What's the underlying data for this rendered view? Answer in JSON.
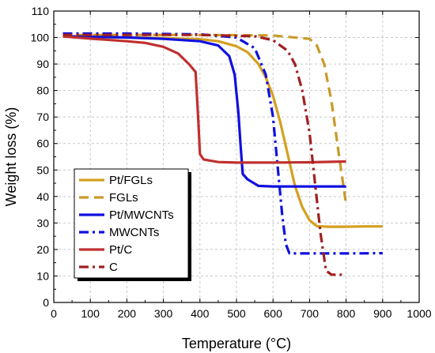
{
  "chart_data": {
    "type": "line",
    "title": "",
    "xlabel": "Temperature (°C)",
    "ylabel": "Weight loss (%)",
    "xlim": [
      0,
      1000
    ],
    "ylim": [
      0,
      110
    ],
    "xticks": [
      0,
      100,
      200,
      300,
      400,
      500,
      600,
      700,
      800,
      900,
      1000
    ],
    "yticks": [
      0,
      10,
      20,
      30,
      40,
      50,
      60,
      70,
      80,
      90,
      100,
      110
    ],
    "grid": true,
    "legend_position": "lower-left",
    "series": [
      {
        "name": "Pt/FGLs",
        "color": "#d4a020",
        "dash": "solid",
        "x": [
          25,
          100,
          200,
          300,
          400,
          450,
          500,
          530,
          560,
          580,
          600,
          620,
          640,
          660,
          680,
          700,
          720,
          750,
          800,
          850,
          900
        ],
        "y": [
          100.5,
          100.2,
          100,
          99.8,
          99.4,
          98.6,
          96.7,
          94.5,
          90,
          85,
          78,
          68,
          56,
          44,
          36,
          31,
          28.8,
          28.6,
          28.6,
          28.7,
          28.7
        ]
      },
      {
        "name": "FGLs",
        "color": "#c99a28",
        "dash": "dash",
        "x": [
          25,
          200,
          400,
          600,
          700,
          720,
          740,
          760,
          780,
          800
        ],
        "y": [
          101,
          101,
          101,
          100.8,
          99.5,
          97,
          90,
          76,
          56,
          37
        ]
      },
      {
        "name": "Pt/MWCNTs",
        "color": "#1010e0",
        "dash": "solid",
        "x": [
          25,
          100,
          200,
          300,
          400,
          450,
          480,
          495,
          505,
          512,
          517,
          530,
          560,
          600,
          700,
          800
        ],
        "y": [
          100.5,
          100.3,
          100,
          99.5,
          98.6,
          97,
          93,
          86,
          72,
          58,
          48.5,
          46.5,
          44,
          43.8,
          43.8,
          43.8
        ]
      },
      {
        "name": "MWCNTs",
        "color": "#1010e0",
        "dash": "dashdot",
        "x": [
          25,
          200,
          400,
          500,
          550,
          580,
          600,
          615,
          625,
          635,
          645,
          660,
          700,
          800,
          900
        ],
        "y": [
          101.5,
          101.5,
          101.2,
          100,
          96,
          86,
          70,
          48,
          33,
          22,
          18.5,
          18.5,
          18.5,
          18.5,
          18.6
        ]
      },
      {
        "name": "Pt/C",
        "color": "#c03030",
        "dash": "solid",
        "x": [
          25,
          100,
          200,
          250,
          300,
          340,
          370,
          388,
          395,
          400,
          410,
          450,
          500,
          600,
          700,
          800
        ],
        "y": [
          100.4,
          99.6,
          98.6,
          98,
          96.5,
          94,
          90,
          87,
          70,
          56,
          54,
          53,
          52.8,
          52.8,
          52.9,
          53.2
        ]
      },
      {
        "name": "C",
        "color": "#a02020",
        "dash": "dashdot",
        "x": [
          25,
          200,
          400,
          550,
          600,
          640,
          660,
          680,
          700,
          715,
          730,
          745,
          760,
          790
        ],
        "y": [
          101,
          101,
          101,
          100.5,
          99,
          95,
          90,
          80,
          64,
          45,
          26,
          12,
          10.5,
          10.5
        ]
      }
    ]
  }
}
